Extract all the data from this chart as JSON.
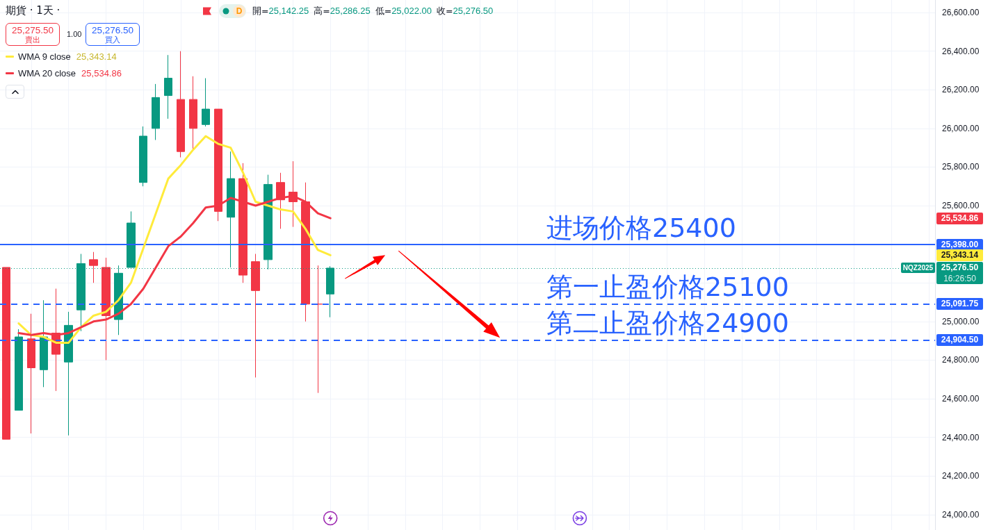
{
  "chart_data": {
    "type": "candlestick",
    "title": "期貨 · 1天 ·",
    "categories": [
      null,
      null,
      null,
      null,
      null,
      null,
      null,
      null,
      null,
      null,
      null,
      null,
      null,
      null,
      null,
      null,
      null,
      null,
      null,
      null,
      null,
      null,
      null,
      null,
      null,
      null,
      null,
      null,
      null,
      null,
      null,
      null,
      null,
      null,
      null,
      null,
      null,
      null,
      null,
      null,
      null,
      null,
      null,
      null,
      null,
      null,
      null,
      null,
      null,
      null,
      null,
      null,
      null,
      null,
      null,
      null,
      null,
      null,
      null,
      null,
      null,
      null,
      null,
      null,
      null,
      null,
      null,
      null,
      null,
      null,
      null,
      null,
      null,
      null,
      null
    ],
    "ohlc": [
      [
        25280,
        25280,
        24390,
        24390
      ],
      [
        24540,
        24960,
        24540,
        24920
      ],
      [
        24910,
        25040,
        24420,
        24760
      ],
      [
        24750,
        25110,
        24660,
        24920
      ],
      [
        24940,
        25170,
        24640,
        24830
      ],
      [
        24790,
        25050,
        24410,
        24980
      ],
      [
        25060,
        25350,
        24950,
        25300
      ],
      [
        25320,
        25360,
        25200,
        25290
      ],
      [
        25280,
        25330,
        24800,
        25030
      ],
      [
        25010,
        25290,
        24930,
        25250
      ],
      [
        25280,
        25570,
        25280,
        25510
      ],
      [
        25720,
        26010,
        25700,
        25960
      ],
      [
        26000,
        26230,
        25940,
        26160
      ],
      [
        26170,
        26380,
        26050,
        26260
      ],
      [
        26150,
        26400,
        25850,
        25880
      ],
      [
        26150,
        26270,
        25890,
        26000
      ],
      [
        26020,
        26260,
        26010,
        26100
      ],
      [
        26100,
        26100,
        25520,
        25570
      ],
      [
        25540,
        25880,
        25280,
        25740
      ],
      [
        25740,
        25820,
        25200,
        25240
      ],
      [
        25310,
        25350,
        24710,
        25160
      ],
      [
        25320,
        25760,
        25270,
        25710
      ],
      [
        25720,
        25770,
        25480,
        25630
      ],
      [
        25670,
        25830,
        25490,
        25620
      ],
      [
        25620,
        25720,
        25000,
        25090
      ],
      [
        25090,
        25290,
        24630,
        25090
      ],
      [
        25142.25,
        25286.25,
        25022,
        25276.5
      ],
      null,
      null,
      null,
      null,
      null,
      null,
      null,
      null,
      null,
      null,
      null,
      null,
      null,
      null,
      null,
      null,
      null,
      null,
      null,
      null,
      null,
      null,
      null,
      null,
      null,
      null,
      null,
      null,
      null,
      null,
      null,
      null,
      null,
      null,
      null,
      null,
      null,
      null,
      null,
      null,
      null,
      null,
      null,
      null,
      null,
      null,
      null,
      null
    ],
    "colors": [
      "#f23645",
      "#089981",
      "#f23645",
      "#089981",
      "#f23645",
      "#089981",
      "#089981",
      "#f23645",
      "#f23645",
      "#089981",
      "#089981",
      "#089981",
      "#089981",
      "#089981",
      "#f23645",
      "#f23645",
      "#089981",
      "#f23645",
      "#089981",
      "#f23645",
      "#f23645",
      "#089981",
      "#f23645",
      "#f23645",
      "#f23645",
      "#f23645",
      "#089981",
      null,
      null,
      null,
      null,
      null,
      null,
      null,
      null,
      null,
      null,
      null,
      null,
      null,
      null,
      null,
      null,
      null,
      null,
      null,
      null,
      null,
      null,
      null,
      null,
      null,
      null,
      null,
      null,
      null,
      null,
      null,
      null,
      null,
      null,
      null,
      null,
      null,
      null,
      null,
      null,
      null,
      null,
      null,
      null,
      null,
      null,
      null,
      null
    ],
    "series": [
      {
        "name": "WMA 9 close",
        "type": "line",
        "color": "#ffeb3b",
        "values": [
          null,
          24990,
          24930,
          24920,
          24890,
          24890,
          24970,
          25030,
          25050,
          25110,
          25200,
          25380,
          25560,
          25740,
          25810,
          25890,
          25960,
          25920,
          25900,
          25770,
          25620,
          25600,
          25580,
          25570,
          25480,
          25370,
          25343.14,
          null,
          null,
          null,
          null,
          null,
          null,
          null,
          null,
          null,
          null,
          null,
          null,
          null,
          null,
          null,
          null,
          null,
          null,
          null,
          null,
          null,
          null,
          null,
          null,
          null,
          null,
          null,
          null,
          null,
          null,
          null,
          null,
          null,
          null,
          null,
          null,
          null,
          null,
          null,
          null,
          null,
          null,
          null,
          null,
          null,
          null,
          null,
          null
        ]
      },
      {
        "name": "WMA 20 close",
        "type": "line",
        "color": "#f23645",
        "values": [
          null,
          24940,
          24930,
          24940,
          24930,
          24940,
          24970,
          25000,
          25010,
          25040,
          25090,
          25170,
          25280,
          25390,
          25440,
          25510,
          25590,
          25600,
          25640,
          25620,
          25600,
          25620,
          25640,
          25650,
          25620,
          25560,
          25534.86,
          null,
          null,
          null,
          null,
          null,
          null,
          null,
          null,
          null,
          null,
          null,
          null,
          null,
          null,
          null,
          null,
          null,
          null,
          null,
          null,
          null,
          null,
          null,
          null,
          null,
          null,
          null,
          null,
          null,
          null,
          null,
          null,
          null,
          null,
          null,
          null,
          null,
          null,
          null,
          null,
          null,
          null,
          null,
          null,
          null,
          null,
          null,
          null
        ]
      }
    ],
    "ylim": [
      23920,
      26665
    ],
    "yticks": [
      {
        "value": 24000,
        "label": "24,000.00"
      },
      {
        "value": 24200,
        "label": "24,200.00"
      },
      {
        "value": 24400,
        "label": "24,400.00"
      },
      {
        "value": 24600,
        "label": "24,600.00"
      },
      {
        "value": 24800,
        "label": "24,800.00"
      },
      {
        "value": 25000,
        "label": "25,000.00"
      },
      {
        "value": 25200,
        "label": null
      },
      {
        "value": 25400,
        "label": null
      },
      {
        "value": 25600,
        "label": "25,600.00"
      },
      {
        "value": 25800,
        "label": "25,800.00"
      },
      {
        "value": 26000,
        "label": "26,000.00"
      },
      {
        "value": 26200,
        "label": "26,200.00"
      },
      {
        "value": 26400,
        "label": "26,400.00"
      },
      {
        "value": 26600,
        "label": "26,600.00"
      }
    ],
    "tick_labels": "y",
    "grid": true,
    "legend": "top left",
    "marker": "none",
    "ref_lines": [
      {
        "axis": "y",
        "value": 25398,
        "label": "进场价格25400",
        "color": "#2962ff",
        "line_style": "solid"
      },
      {
        "axis": "y",
        "value": 25091.75,
        "label": "第一止盈价格25100",
        "color": "#2962ff",
        "line_style": "dashed"
      },
      {
        "axis": "y",
        "value": 24904.5,
        "label": "第二止盈价格24900",
        "color": "#2962ff",
        "line_style": "dashed"
      },
      {
        "axis": "y",
        "value": 25276.5,
        "label": "NQZ2025",
        "color": "#089981",
        "line_style": "dotted"
      }
    ],
    "annotations": [
      "D",
      "開=25,142.25",
      "高=25,286.25",
      "低=25,022.00",
      "收=25,276.50",
      "25,275.50",
      "賣出",
      "1.00",
      "25,276.50",
      "買入",
      "25,534.86",
      "25,398.00",
      "25,343.14",
      "25,276.50",
      "16:26:50",
      "25,091.75",
      "24,904.50"
    ]
  }
}
